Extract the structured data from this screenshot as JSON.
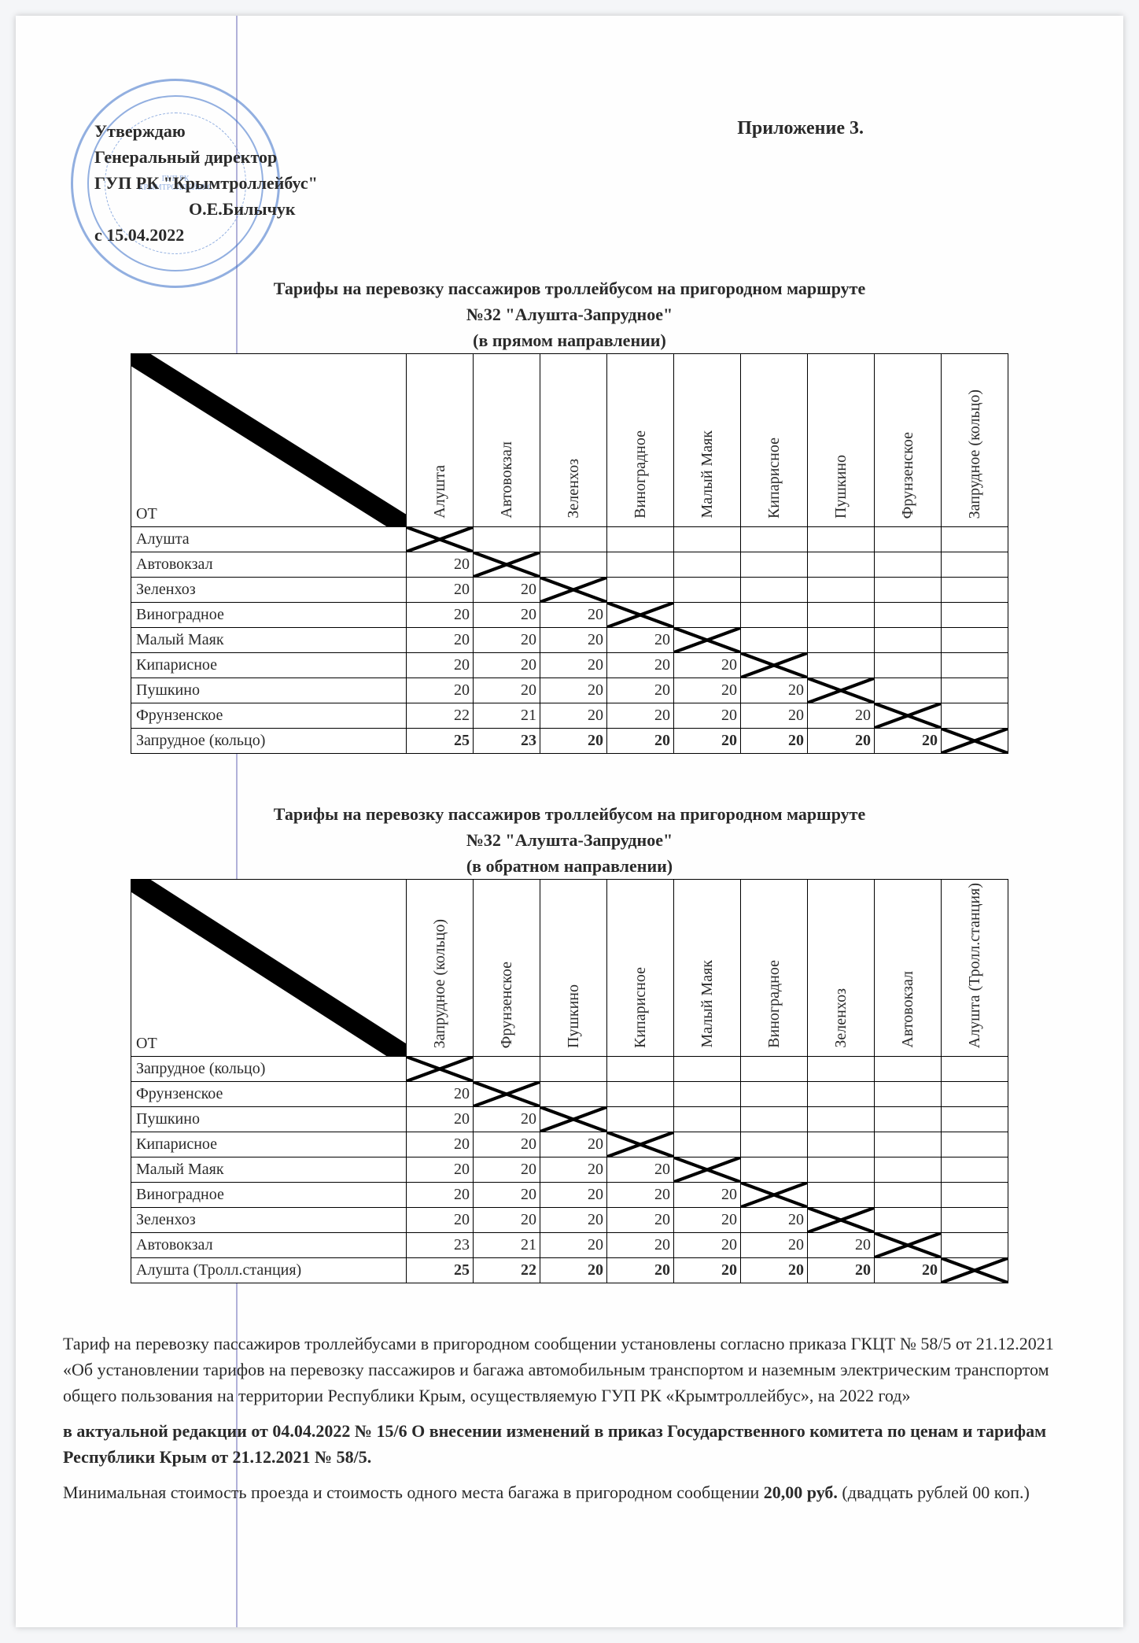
{
  "header": {
    "attachment": "Приложение 3.",
    "approval": {
      "l1": "Утверждаю",
      "l2": "Генеральный директор",
      "l3": "ГУП РК \"Крымтроллейбус\"",
      "signer": "О.Е.Билычук",
      "date": "с 15.04.2022"
    }
  },
  "table1": {
    "title": {
      "l1": "Тарифы на перевозку пассажиров троллейбусом  на пригородном маршруте",
      "l2": "№32 \"Алушта-Запрудное\"",
      "l3": "(в прямом направлении)"
    },
    "ot_label": "ОТ",
    "cols": [
      "Алушта",
      "Автовокзал",
      "Зеленхоз",
      "Виноградное",
      "Малый Маяк",
      "Кипарисное",
      "Пушкино",
      "Фрунзенское",
      "Запрудное (кольцо)"
    ],
    "rows": [
      {
        "h": "Алушта",
        "bold": true,
        "v": [
          "X",
          "",
          "",
          "",
          "",
          "",
          "",
          "",
          ""
        ]
      },
      {
        "h": "Автовокзал",
        "v": [
          20,
          "X",
          "",
          "",
          "",
          "",
          "",
          "",
          ""
        ]
      },
      {
        "h": "Зеленхоз",
        "v": [
          20,
          20,
          "X",
          "",
          "",
          "",
          "",
          "",
          ""
        ]
      },
      {
        "h": "Виноградное",
        "v": [
          20,
          20,
          20,
          "X",
          "",
          "",
          "",
          "",
          ""
        ]
      },
      {
        "h": "Малый Маяк",
        "v": [
          20,
          20,
          20,
          20,
          "X",
          "",
          "",
          "",
          ""
        ]
      },
      {
        "h": "Кипарисное",
        "v": [
          20,
          20,
          20,
          20,
          20,
          "X",
          "",
          "",
          ""
        ]
      },
      {
        "h": "Пушкино",
        "v": [
          20,
          20,
          20,
          20,
          20,
          20,
          "X",
          "",
          ""
        ]
      },
      {
        "h": "Фрунзенское",
        "v": [
          22,
          21,
          20,
          20,
          20,
          20,
          20,
          "X",
          ""
        ]
      },
      {
        "h": "Запрудное (кольцо)",
        "bold": true,
        "v": [
          25,
          23,
          20,
          20,
          20,
          20,
          20,
          20,
          "X"
        ]
      }
    ]
  },
  "table2": {
    "title": {
      "l1": "Тарифы на перевозку пассажиров троллейбусом  на пригородном маршруте",
      "l2": "№32 \"Алушта-Запрудное\"",
      "l3": "(в обратном направлении)"
    },
    "ot_label": "ОТ",
    "cols": [
      "Запрудное (кольцо)",
      "Фрунзенское",
      "Пушкино",
      "Кипарисное",
      "Малый Маяк",
      "Виноградное",
      "Зеленхоз",
      "Автовокзал",
      "Алушта (Тролл.станция)"
    ],
    "rows": [
      {
        "h": "Запрудное (кольцо)",
        "bold": true,
        "v": [
          "X",
          "",
          "",
          "",
          "",
          "",
          "",
          "",
          ""
        ]
      },
      {
        "h": "Фрунзенское",
        "v": [
          20,
          "X",
          "",
          "",
          "",
          "",
          "",
          "",
          ""
        ]
      },
      {
        "h": "Пушкино",
        "v": [
          20,
          20,
          "X",
          "",
          "",
          "",
          "",
          "",
          ""
        ]
      },
      {
        "h": "Кипарисное",
        "v": [
          20,
          20,
          20,
          "X",
          "",
          "",
          "",
          "",
          ""
        ]
      },
      {
        "h": "Малый Маяк",
        "v": [
          20,
          20,
          20,
          20,
          "X",
          "",
          "",
          "",
          ""
        ]
      },
      {
        "h": "Виноградное",
        "v": [
          20,
          20,
          20,
          20,
          20,
          "X",
          "",
          "",
          ""
        ]
      },
      {
        "h": "Зеленхоз",
        "v": [
          20,
          20,
          20,
          20,
          20,
          20,
          "X",
          "",
          ""
        ]
      },
      {
        "h": "Автовокзал",
        "v": [
          23,
          21,
          20,
          20,
          20,
          20,
          20,
          "X",
          ""
        ]
      },
      {
        "h": "Алушта (Тролл.станция)",
        "bold": true,
        "v": [
          25,
          22,
          20,
          20,
          20,
          20,
          20,
          20,
          "X"
        ]
      }
    ]
  },
  "footer": {
    "p1": "Тариф на перевозку пассажиров троллейбусами в пригородном сообщении установлены согласно приказа ГКЦТ № 58/5 от 21.12.2021 «Об установлении тарифов на перевозку пассажиров и багажа автомобильным транспортом и наземным электрическим транспортом общего пользования на территории Республики Крым, осуществляемую ГУП РК «Крымтроллейбус», на 2022 год»",
    "p2": "в актуальной редакции от 04.04.2022 № 15/6 О внесении изменений в приказ Государственного комитета по ценам и тарифам Республики Крым от 21.12.2021 № 58/5.",
    "p3a": "Минимальная стоимость проезда и стоимость одного места багажа в пригородном сообщении",
    "p3b": "20,00 руб.",
    "p3c": "(двадцать рублей 00 коп.)"
  }
}
